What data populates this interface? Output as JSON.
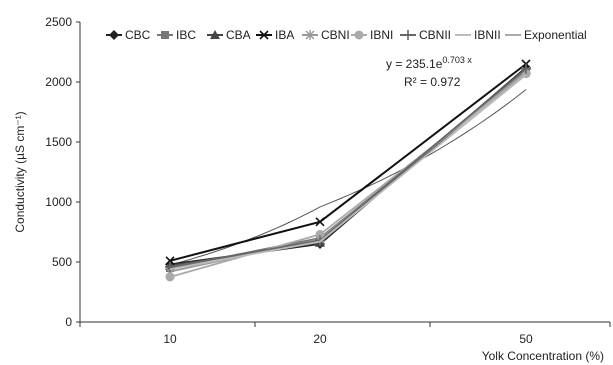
{
  "chart_data": {
    "type": "line",
    "title": "",
    "xlabel": "Yolk Concentration (%)",
    "ylabel": "Conductivity (µS cm⁻¹)",
    "categories": [
      "10",
      "20",
      "50"
    ],
    "ylim": [
      0,
      2500
    ],
    "yticks": [
      "0",
      "500",
      "1000",
      "1500",
      "2000",
      "2500"
    ],
    "grid": false,
    "legend_position": "top",
    "series": [
      {
        "name": "CBC",
        "marker": "diamond",
        "color": "#222222",
        "values": [
          480,
          650,
          2120
        ]
      },
      {
        "name": "IBC",
        "marker": "square",
        "color": "#777777",
        "values": [
          450,
          700,
          2080
        ]
      },
      {
        "name": "CBA",
        "marker": "triangle",
        "color": "#444444",
        "values": [
          470,
          660,
          2100
        ]
      },
      {
        "name": "IBA",
        "marker": "x",
        "color": "#111111",
        "values": [
          510,
          835,
          2150
        ]
      },
      {
        "name": "CBNI",
        "marker": "star",
        "color": "#999999",
        "values": [
          420,
          690,
          2090
        ]
      },
      {
        "name": "IBNI",
        "marker": "circle",
        "color": "#aaaaaa",
        "values": [
          375,
          730,
          2070
        ]
      },
      {
        "name": "CBNII",
        "marker": "plus",
        "color": "#666666",
        "values": [
          460,
          680,
          2110
        ]
      },
      {
        "name": "IBNII",
        "marker": "none",
        "color": "#bbbbbb",
        "values": [
          440,
          670,
          2060
        ]
      }
    ],
    "trendline": {
      "name": "Exponential",
      "color": "#555555",
      "equation_base": "y = 235.1e",
      "equation_exponent": "0.703 x",
      "r_squared": "R² = 0.972",
      "values": [
        475,
        960,
        1940
      ]
    }
  }
}
